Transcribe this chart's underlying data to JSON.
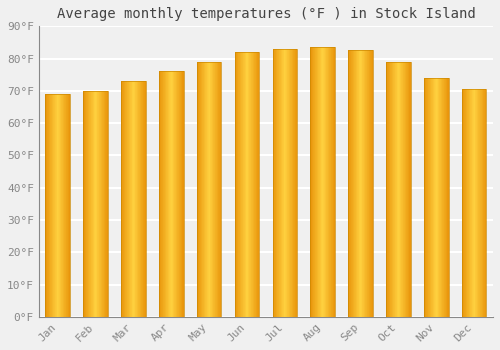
{
  "title": "Average monthly temperatures (°F ) in Stock Island",
  "months": [
    "Jan",
    "Feb",
    "Mar",
    "Apr",
    "May",
    "Jun",
    "Jul",
    "Aug",
    "Sep",
    "Oct",
    "Nov",
    "Dec"
  ],
  "values": [
    69,
    70,
    73,
    76,
    79,
    82,
    83,
    83.5,
    82.5,
    79,
    74,
    70.5
  ],
  "bar_color": "#FFB300",
  "bar_edge_color": "#E8950A",
  "ylim": [
    0,
    90
  ],
  "yticks": [
    0,
    10,
    20,
    30,
    40,
    50,
    60,
    70,
    80,
    90
  ],
  "ytick_labels": [
    "0°F",
    "10°F",
    "20°F",
    "30°F",
    "40°F",
    "50°F",
    "60°F",
    "70°F",
    "80°F",
    "90°F"
  ],
  "bg_color": "#f0f0f0",
  "grid_color": "#ffffff",
  "title_fontsize": 10,
  "tick_fontsize": 8,
  "tick_color": "#888888",
  "bar_width": 0.65
}
